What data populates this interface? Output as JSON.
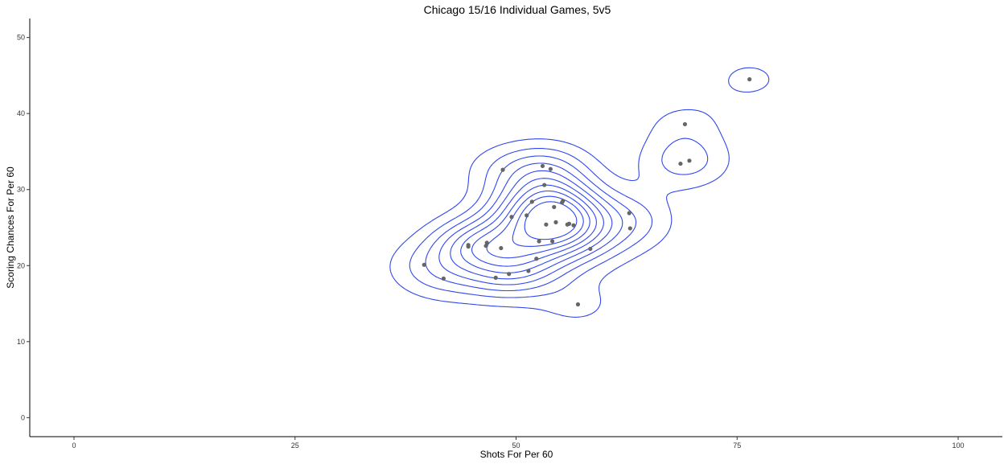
{
  "chart_data": {
    "type": "scatter",
    "title": "Chicago 15/16 Individual Games, 5v5",
    "xlabel": "Shots For Per 60",
    "ylabel": "Scoring Chances For Per 60",
    "xlim": [
      -5,
      105
    ],
    "ylim": [
      -2.5,
      52.5
    ],
    "xticks": [
      0,
      25,
      50,
      75,
      100
    ],
    "yticks": [
      0,
      10,
      20,
      30,
      40,
      50
    ],
    "grid": false,
    "overlay": "2d-density-contours",
    "contour_color": "#3047f0",
    "point_color": "#666666",
    "points": [
      [
        39.6,
        20.1
      ],
      [
        41.8,
        18.3
      ],
      [
        44.6,
        22.7
      ],
      [
        44.6,
        22.5
      ],
      [
        46.6,
        22.6
      ],
      [
        46.7,
        23.0
      ],
      [
        47.7,
        18.4
      ],
      [
        48.3,
        22.3
      ],
      [
        48.5,
        32.6
      ],
      [
        49.2,
        18.9
      ],
      [
        49.5,
        26.4
      ],
      [
        51.2,
        26.6
      ],
      [
        51.4,
        19.3
      ],
      [
        51.8,
        28.4
      ],
      [
        52.3,
        20.9
      ],
      [
        52.6,
        23.2
      ],
      [
        53.0,
        33.1
      ],
      [
        53.2,
        30.6
      ],
      [
        53.4,
        25.4
      ],
      [
        53.9,
        32.7
      ],
      [
        54.1,
        23.2
      ],
      [
        54.3,
        27.7
      ],
      [
        54.5,
        25.7
      ],
      [
        55.2,
        28.3
      ],
      [
        55.3,
        28.5
      ],
      [
        55.8,
        25.4
      ],
      [
        56.0,
        25.5
      ],
      [
        56.5,
        25.3
      ],
      [
        57.0,
        14.9
      ],
      [
        58.4,
        22.2
      ],
      [
        62.8,
        26.9
      ],
      [
        62.9,
        24.9
      ],
      [
        68.6,
        33.4
      ],
      [
        69.1,
        38.6
      ],
      [
        69.6,
        33.8
      ],
      [
        76.4,
        44.5
      ]
    ]
  }
}
